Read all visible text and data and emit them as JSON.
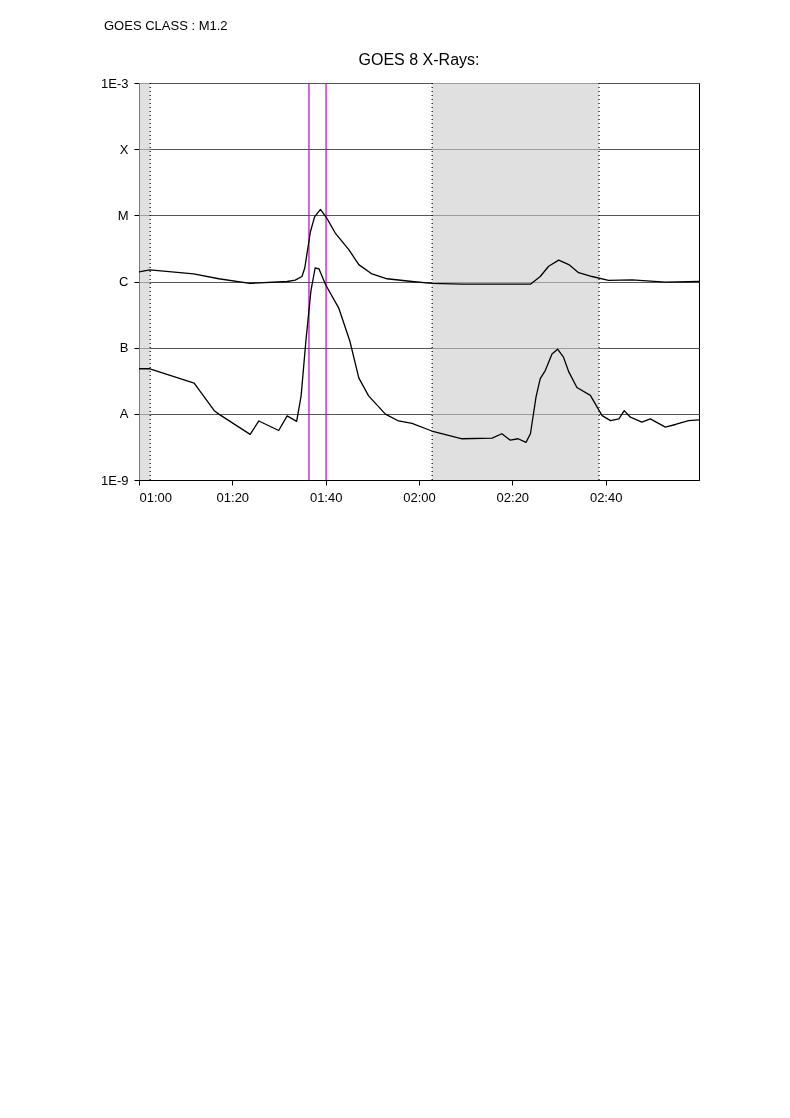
{
  "chart_data": {
    "type": "line",
    "title": "GOES 8 X-Rays:",
    "annotations": [
      "GOES CLASS : M1.2"
    ],
    "log": "y",
    "grid": "y",
    "legend": false,
    "marker": "none",
    "line_style": "solid",
    "xlim": [
      1.0,
      3.0
    ],
    "xticks": [
      {
        "value": 1.0,
        "label": "01:00"
      },
      {
        "value": 1.3333,
        "label": "01:20"
      },
      {
        "value": 1.6667,
        "label": "01:40"
      },
      {
        "value": 2.0,
        "label": "02:00"
      },
      {
        "value": 2.3333,
        "label": "02:20"
      },
      {
        "value": 2.6667,
        "label": "02:40"
      }
    ],
    "ylim": [
      1e-09,
      0.001
    ],
    "yticks": [
      {
        "value": 0.001,
        "label": "1E-3"
      },
      {
        "value": 0.0001,
        "label": "X"
      },
      {
        "value": 1e-05,
        "label": "M"
      },
      {
        "value": 1e-06,
        "label": "C"
      },
      {
        "value": 1e-07,
        "label": "B"
      },
      {
        "value": 1e-08,
        "label": "A"
      },
      {
        "value": 1e-09,
        "label": "1E-9"
      }
    ],
    "series": [
      {
        "color": "#000000",
        "x": [
          1.0,
          1.039,
          1.195,
          1.285,
          1.396,
          1.529,
          1.558,
          1.582,
          1.592,
          1.612,
          1.627,
          1.648,
          1.671,
          1.701,
          1.75,
          1.785,
          1.832,
          1.886,
          1.975,
          2.046,
          2.154,
          2.398,
          2.433,
          2.463,
          2.499,
          2.535,
          2.57,
          2.618,
          2.677,
          2.761,
          2.88,
          3.0
        ],
        "values": [
          1.4e-06,
          1.5e-06,
          1.3e-06,
          1.1e-06,
          9.4e-07,
          1e-06,
          1.05e-06,
          1.19e-06,
          1.6e-06,
          5.6e-06,
          9.5e-06,
          1.23e-05,
          9e-06,
          5.4e-06,
          3e-06,
          1.8e-06,
          1.3e-06,
          1.1e-06,
          1e-06,
          9.4e-07,
          9.1e-07,
          9.1e-07,
          1.19e-06,
          1.7e-06,
          2.1e-06,
          1.8e-06,
          1.36e-06,
          1.19e-06,
          1.04e-06,
          1.06e-06,
          9.8e-07,
          1e-06
        ]
      },
      {
        "color": "#000000",
        "x": [
          1.0,
          1.039,
          1.197,
          1.27,
          1.285,
          1.397,
          1.428,
          1.499,
          1.529,
          1.563,
          1.579,
          1.596,
          1.614,
          1.629,
          1.643,
          1.666,
          1.713,
          1.753,
          1.785,
          1.82,
          1.88,
          1.927,
          1.975,
          2.046,
          2.154,
          2.261,
          2.296,
          2.326,
          2.354,
          2.382,
          2.398,
          2.418,
          2.433,
          2.451,
          2.475,
          2.495,
          2.516,
          2.535,
          2.564,
          2.612,
          2.654,
          2.684,
          2.714,
          2.733,
          2.755,
          2.796,
          2.826,
          2.88,
          2.916,
          2.963,
          3.0
        ],
        "values": [
          4.8e-08,
          4.8e-08,
          2.9e-08,
          1.1e-08,
          9.9e-09,
          4.9e-09,
          7.8e-09,
          5.6e-09,
          9.3e-09,
          7.7e-09,
          1.87e-08,
          1.26e-07,
          7.2e-07,
          1.6e-06,
          1.55e-06,
          9e-07,
          4e-07,
          1.26e-07,
          3.5e-08,
          1.87e-08,
          9.9e-09,
          7.8e-09,
          7.2e-09,
          5.5e-09,
          4.2e-09,
          4.3e-09,
          5e-09,
          4e-09,
          4.2e-09,
          3.7e-09,
          5e-09,
          1.8e-08,
          3.4e-08,
          4.5e-08,
          8e-08,
          9.5e-08,
          7.2e-08,
          4.3e-08,
          2.5e-08,
          1.9e-08,
          9.4e-09,
          7.9e-09,
          8.4e-09,
          1.12e-08,
          8.9e-09,
          7.5e-09,
          8.4e-09,
          6.3e-09,
          6.9e-09,
          7.9e-09,
          8.1e-09
        ]
      }
    ],
    "bands": [
      {
        "axis": "x",
        "from": 1.0,
        "to": 1.04,
        "color": "#cccccc"
      },
      {
        "axis": "x",
        "from": 2.047,
        "to": 2.643,
        "color": "#cccccc"
      }
    ],
    "ref_lines": [
      {
        "axis": "x",
        "value": 1.04,
        "color": "#000000",
        "line_style": "dotted"
      },
      {
        "axis": "x",
        "value": 2.047,
        "color": "#000000",
        "line_style": "dotted"
      },
      {
        "axis": "x",
        "value": 2.643,
        "color": "#000000",
        "line_style": "dotted"
      },
      {
        "axis": "x",
        "value": 1.607,
        "color": "#c000c0",
        "line_style": "solid"
      },
      {
        "axis": "x",
        "value": 1.668,
        "color": "#c000c0",
        "line_style": "solid"
      }
    ]
  }
}
